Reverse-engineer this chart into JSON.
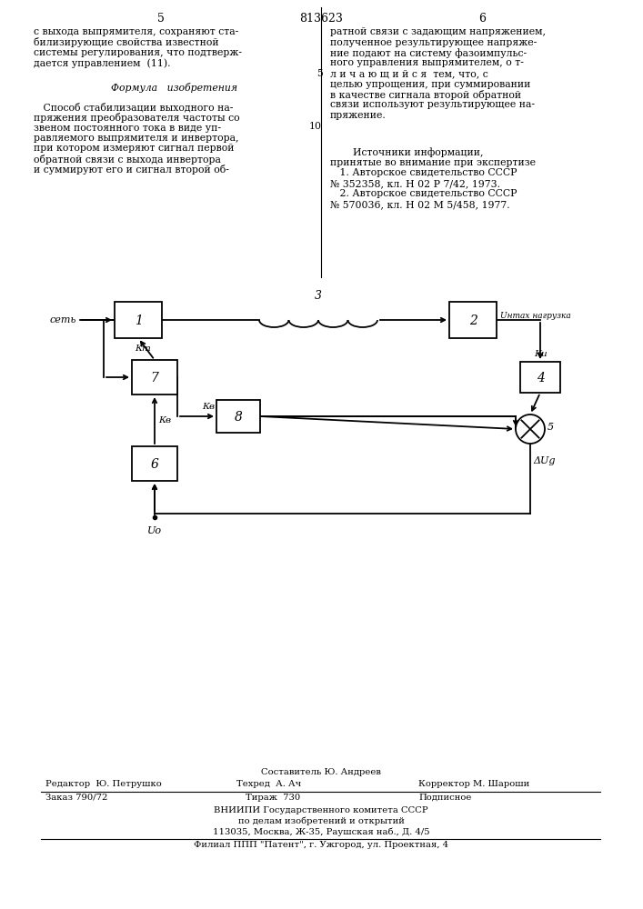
{
  "page_number_left": "5",
  "page_number_center": "813623",
  "page_number_right": "6",
  "text_left_line1": "с выхода выпрямителя, сохраняют ста-",
  "text_left_line2": "билизирующие свойства известной",
  "text_left_line3": "системы регулирования, что подтверж-",
  "text_left_line4": "дается управлением  (11).",
  "formula_title": "Формула   изобретения",
  "text_left2_lines": [
    "   Способ стабилизации выходного на-",
    "пряжения преобразователя частоты со",
    "звеном постоянного тока в виде уп-",
    "равляемого выпрямителя и инвертора,",
    "при котором измеряют сигнал первой",
    "обратной связи с выхода инвертора",
    "и суммируют его и сигнал второй об-"
  ],
  "text_right_lines": [
    "ратной связи с задающим напряжением,",
    "полученное результирующее напряже-",
    "ние подают на систему фазоимпульс-",
    "ного управления выпрямителем, о т-",
    "л и ч а ю щ и й с я  тем, что, с",
    "целью упрощения, при суммировании",
    "в качестве сигнала второй обратной",
    "связи используют результирующее на-",
    "пряжение."
  ],
  "sources_title": "Источники информации,",
  "sources_lines": [
    "принятые во внимание при экспертизе",
    "   1. Авторское свидетельство СССР",
    "№ 352358, кл. Н 02 Р 7/42, 1973.",
    "   2. Авторское свидетельство СССР",
    "№ 570036, кл. Н 02 М 5/458, 1977."
  ],
  "line_num_5": "5",
  "line_num_10": "10",
  "label_set": "сеть",
  "label_3": "3",
  "label_1": "1",
  "label_2": "2",
  "label_4": "4",
  "label_5": "5",
  "label_6": "6",
  "label_7": "7",
  "label_8": "8",
  "label_ku": "Ки",
  "label_kt": "Кт",
  "label_kb1": "Кв",
  "label_kb2": "Кв",
  "label_kb3": "Кв",
  "label_umax": "Uнmax нагрузка",
  "label_du": "ΔUg",
  "label_u0": "Uо",
  "footer_composer": "Составитель Ю. Андреев",
  "footer_editor": "Редактор  Ю. Петрушко",
  "footer_techred": "Техред  А. Ач",
  "footer_corrector": "Корректор М. Шароши",
  "footer_order": "Заказ 790/72",
  "footer_tirazh": "Тираж  730",
  "footer_podpisnoe": "Подписное",
  "footer_vniipи": "ВНИИПИ Государственного комитета СССР",
  "footer_po_delam": "по делам изобретений и открытий",
  "footer_address": "113035, Москва, Ж-35, Раушская наб., Д. 4/5",
  "footer_filial": "Филиал ППП \"Патент\", г. Ужгород, ул. Проектная, 4",
  "bg_color": "#ffffff",
  "text_color": "#000000"
}
